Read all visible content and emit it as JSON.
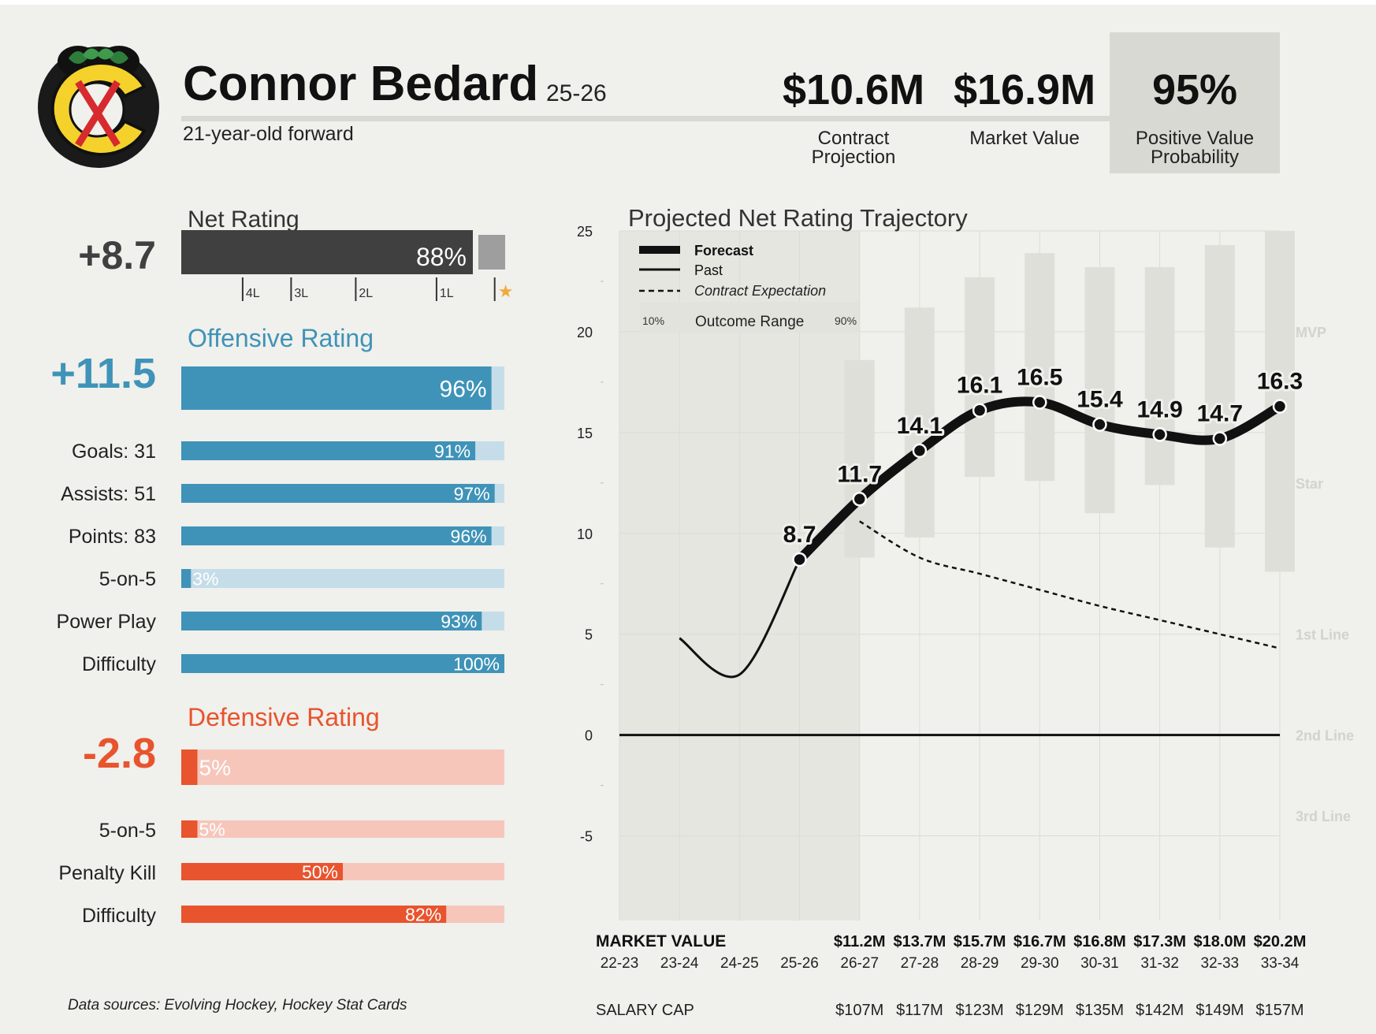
{
  "player": {
    "name": "Connor Bedard",
    "season": "25-26",
    "subtitle": "21-year-old forward"
  },
  "header_stats": [
    {
      "value": "$10.6M",
      "label_lines": [
        "Contract",
        "Projection"
      ]
    },
    {
      "value": "$16.9M",
      "label_lines": [
        "Market Value"
      ]
    },
    {
      "value": "95%",
      "label_lines": [
        "Positive Value",
        "Probability"
      ],
      "highlight": true
    }
  ],
  "colors": {
    "net": "#404040",
    "net_track": "#9e9e9e",
    "offense": "#3f93b8",
    "offense_track": "#c4dde8",
    "defense": "#e8542e",
    "defense_track": "#f6c6bb",
    "star": "#f2a93b",
    "logo_red": "#d62a2f",
    "logo_yellow": "#f4d22b",
    "logo_green": "#2e7d3b"
  },
  "net_rating": {
    "title": "Net Rating",
    "value": "+8.7",
    "percentile": 88,
    "percentile_label": "88%",
    "tier_marks": [
      {
        "label": "4L",
        "pct": 19
      },
      {
        "label": "3L",
        "pct": 34
      },
      {
        "label": "2L",
        "pct": 54
      },
      {
        "label": "1L",
        "pct": 79
      },
      {
        "label": "★",
        "pct": 97
      }
    ]
  },
  "offensive_rating": {
    "title": "Offensive Rating",
    "value": "+11.5",
    "percentile": 96,
    "percentile_label": "96%",
    "rows": [
      {
        "label": "Goals: 31",
        "pct": 91,
        "pct_label": "91%"
      },
      {
        "label": "Assists: 51",
        "pct": 97,
        "pct_label": "97%"
      },
      {
        "label": "Points: 83",
        "pct": 96,
        "pct_label": "96%"
      },
      {
        "label": "5-on-5",
        "pct": 3,
        "pct_label": "3%"
      },
      {
        "label": "Power Play",
        "pct": 93,
        "pct_label": "93%"
      },
      {
        "label": "Difficulty",
        "pct": 100,
        "pct_label": "100%"
      }
    ]
  },
  "defensive_rating": {
    "title": "Defensive Rating",
    "value": "-2.8",
    "percentile": 5,
    "percentile_label": "5%",
    "rows": [
      {
        "label": "5-on-5",
        "pct": 5,
        "pct_label": "5%"
      },
      {
        "label": "Penalty Kill",
        "pct": 50,
        "pct_label": "50%"
      },
      {
        "label": "Difficulty",
        "pct": 82,
        "pct_label": "82%"
      }
    ]
  },
  "chart_data": {
    "type": "line",
    "title": "Projected Net Rating Trajectory",
    "xlabel": "",
    "ylabel": "",
    "x": [
      "22-23",
      "23-24",
      "24-25",
      "25-26",
      "26-27",
      "27-28",
      "28-29",
      "29-30",
      "30-31",
      "31-32",
      "32-33",
      "33-34"
    ],
    "ylim": [
      -9.2,
      25
    ],
    "yticks": [
      -5,
      0,
      5,
      10,
      15,
      20,
      25
    ],
    "grid": true,
    "legend_position": "top-left",
    "legend": {
      "forecast": "Forecast",
      "past": "Past",
      "contract": "Contract Expectation",
      "range_low": "10%",
      "range_label": "Outcome Range",
      "range_high": "90%"
    },
    "tiers": [
      {
        "label": "MVP",
        "y": 20
      },
      {
        "label": "Star",
        "y": 12.5
      },
      {
        "label": "1st Line",
        "y": 5
      },
      {
        "label": "2nd Line",
        "y": 0
      },
      {
        "label": "3rd Line",
        "y": -4
      }
    ],
    "series": [
      {
        "name": "Past",
        "x": [
          "23-24",
          "24-25",
          "25-26"
        ],
        "values": [
          4.8,
          3.0,
          8.7
        ]
      },
      {
        "name": "Forecast",
        "x": [
          "25-26",
          "26-27",
          "27-28",
          "28-29",
          "29-30",
          "30-31",
          "31-32",
          "32-33",
          "33-34"
        ],
        "values": [
          8.7,
          11.7,
          14.1,
          16.1,
          16.5,
          15.4,
          14.9,
          14.7,
          16.3
        ],
        "labels": [
          "8.7",
          "11.7",
          "14.1",
          "16.1",
          "16.5",
          "15.4",
          "14.9",
          "14.7",
          "16.3"
        ]
      },
      {
        "name": "Contract Expectation",
        "x": [
          "26-27",
          "27-28",
          "28-29",
          "29-30",
          "30-31",
          "31-32",
          "32-33",
          "33-34"
        ],
        "values": [
          10.6,
          8.8,
          8.0,
          7.2,
          6.4,
          5.7,
          5.0,
          4.3
        ]
      }
    ],
    "outcome_range": [
      {
        "x": "26-27",
        "low": 8.8,
        "high": 18.6
      },
      {
        "x": "27-28",
        "low": 9.8,
        "high": 21.2
      },
      {
        "x": "28-29",
        "low": 12.8,
        "high": 22.7
      },
      {
        "x": "29-30",
        "low": 12.6,
        "high": 23.9
      },
      {
        "x": "30-31",
        "low": 11.0,
        "high": 23.2
      },
      {
        "x": "31-32",
        "low": 12.4,
        "high": 23.2
      },
      {
        "x": "32-33",
        "low": 9.3,
        "high": 24.3
      },
      {
        "x": "33-34",
        "low": 8.1,
        "high": 25.0
      }
    ],
    "market_value": {
      "label": "MARKET VALUE",
      "values": [
        {
          "x": "26-27",
          "value": "$11.2M"
        },
        {
          "x": "27-28",
          "value": "$13.7M"
        },
        {
          "x": "28-29",
          "value": "$15.7M"
        },
        {
          "x": "29-30",
          "value": "$16.7M"
        },
        {
          "x": "30-31",
          "value": "$16.8M"
        },
        {
          "x": "31-32",
          "value": "$17.3M"
        },
        {
          "x": "32-33",
          "value": "$18.0M"
        },
        {
          "x": "33-34",
          "value": "$20.2M"
        }
      ]
    },
    "salary_cap": {
      "label": "SALARY CAP",
      "values": [
        {
          "x": "26-27",
          "value": "$107M"
        },
        {
          "x": "27-28",
          "value": "$117M"
        },
        {
          "x": "28-29",
          "value": "$123M"
        },
        {
          "x": "29-30",
          "value": "$129M"
        },
        {
          "x": "30-31",
          "value": "$135M"
        },
        {
          "x": "31-32",
          "value": "$142M"
        },
        {
          "x": "32-33",
          "value": "$149M"
        },
        {
          "x": "33-34",
          "value": "$157M"
        }
      ]
    }
  },
  "footer": {
    "sources": "Data sources: Evolving Hockey, Hockey Stat Cards"
  }
}
